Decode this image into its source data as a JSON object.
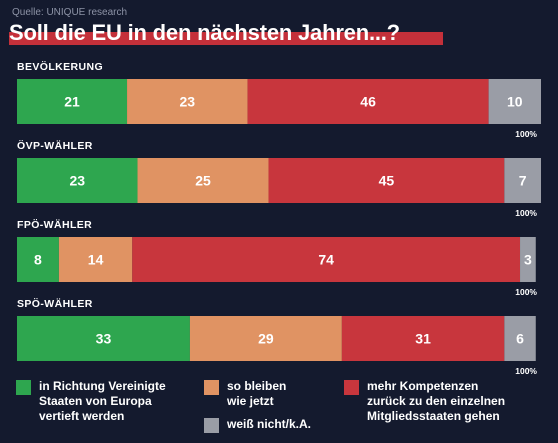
{
  "header": {
    "source": "Quelle: UNIQUE research",
    "title": "Soll die EU in den nächsten Jahren...?"
  },
  "chart_data": {
    "type": "bar",
    "orientation": "horizontal-stacked",
    "categories": [
      "BEVÖLKERUNG",
      "ÖVP-WÄHLER",
      "FPÖ-WÄHLER",
      "SPÖ-WÄHLER"
    ],
    "total_label": "100%",
    "series": [
      {
        "name": "in Richtung Vereinigte Staaten von Europa vertieft werden",
        "color": "#2ea64f",
        "values": [
          21,
          23,
          8,
          33
        ]
      },
      {
        "name": "so bleiben wie jetzt",
        "color": "#e09363",
        "values": [
          23,
          25,
          14,
          29
        ]
      },
      {
        "name": "mehr Kompetenzen zurück zu den einzelnen Mitgliedsstaaten gehen",
        "color": "#c8363d",
        "values": [
          46,
          45,
          74,
          31
        ]
      },
      {
        "name": "weiß nicht/k.A.",
        "color": "#9a9da6",
        "values": [
          10,
          7,
          3,
          6
        ]
      }
    ],
    "xlim": [
      0,
      100
    ]
  },
  "legend": [
    {
      "label": "in Richtung Vereinigte\nStaaten von Europa\nvertieft werden",
      "color": "#2ea64f"
    },
    {
      "label": "so bleiben\nwie jetzt",
      "color": "#e09363"
    },
    {
      "label": "mehr Kompetenzen\nzurück zu den einzelnen\nMitgliedsstaaten gehen",
      "color": "#c8363d"
    },
    {
      "label": "weiß nicht/k.A.",
      "color": "#9a9da6"
    }
  ]
}
